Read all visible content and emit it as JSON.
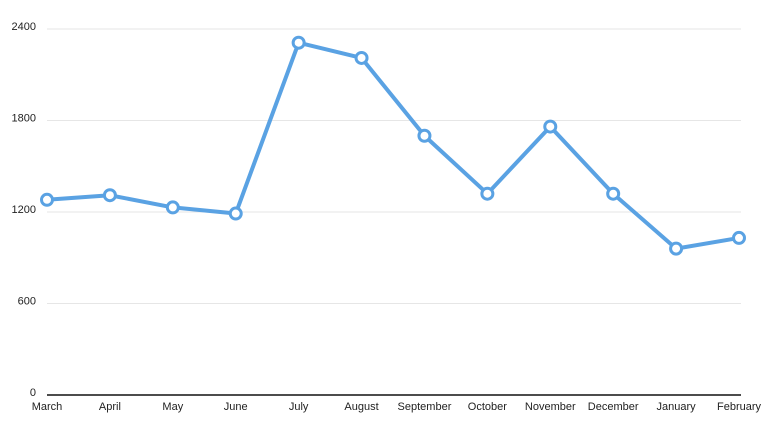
{
  "chart_data": {
    "type": "line",
    "categories": [
      "March",
      "April",
      "May",
      "June",
      "July",
      "August",
      "September",
      "October",
      "November",
      "December",
      "January",
      "February"
    ],
    "series": [
      {
        "color": "#5aa2e3",
        "values": [
          1280,
          1310,
          1230,
          1190,
          2310,
          2210,
          1700,
          1320,
          1760,
          1320,
          960,
          1030
        ]
      }
    ],
    "ylim": [
      0,
      2400
    ],
    "yticks": [
      0,
      600,
      1200,
      1800,
      2400
    ],
    "grid": true
  }
}
